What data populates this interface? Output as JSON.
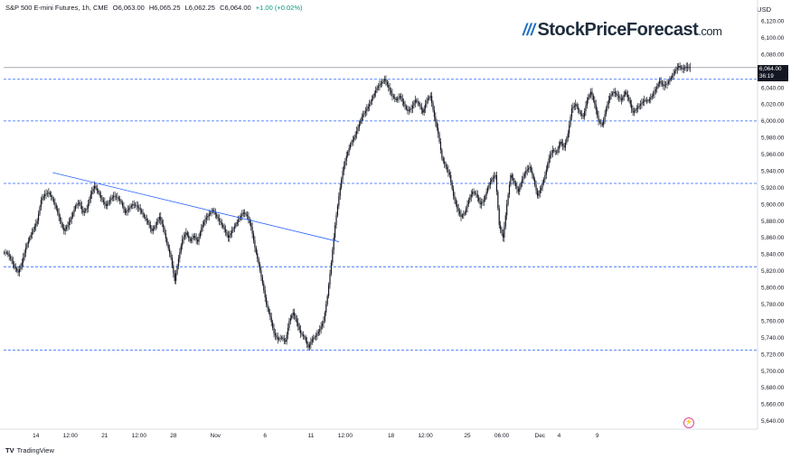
{
  "header": {
    "symbol": "S&P 500 E-mini Futures, 1h, CME",
    "open": "O6,063.00",
    "high": "H6,065.25",
    "low": "L6,062.25",
    "close": "C6,064.00",
    "change": "+1.00 (+0.02%)"
  },
  "currency": "USD",
  "logo": {
    "slashes": "///",
    "name": "StockPriceForecast",
    "domain": ".com"
  },
  "footer": {
    "brand": "TradingView",
    "mark": "TV"
  },
  "last_price": {
    "price": "6,064.00",
    "countdown": "36:19"
  },
  "icons": {
    "tradingview": "tradingview-logo-icon",
    "alert": "lightning-icon"
  },
  "colors": {
    "candle": "#131722",
    "level_line": "#2962ff",
    "trendline": "#2962ff",
    "price_line": "#787b86",
    "alert": "#e040a0"
  },
  "chart_data": {
    "type": "line",
    "title": "",
    "xlabel": "",
    "ylabel": "",
    "ylim": [
      5630,
      6130
    ],
    "y_ticks": [
      "6,120.00",
      "6,100.00",
      "6,080.00",
      "6,060.00",
      "6,040.00",
      "6,020.00",
      "6,000.00",
      "5,980.00",
      "5,960.00",
      "5,940.00",
      "5,920.00",
      "5,900.00",
      "5,880.00",
      "5,860.00",
      "5,840.00",
      "5,820.00",
      "5,800.00",
      "5,780.00",
      "5,760.00",
      "5,740.00",
      "5,720.00",
      "5,700.00",
      "5,680.00",
      "5,660.00",
      "5,640.00"
    ],
    "x_ticks": [
      "14",
      "12:00",
      "21",
      "12:00",
      "28",
      "Nov",
      "6",
      "11",
      "12:00",
      "18",
      "12:00",
      "25",
      "06:00",
      "Dec",
      "4",
      "9"
    ],
    "series": [
      {
        "values": [
          5842,
          5835,
          5825,
          5818,
          5830,
          5848,
          5860,
          5870,
          5880,
          5905,
          5912,
          5914,
          5906,
          5895,
          5880,
          5868,
          5875,
          5885,
          5898,
          5902,
          5890,
          5895,
          5912,
          5922,
          5914,
          5905,
          5898,
          5905,
          5910,
          5908,
          5902,
          5890,
          5895,
          5900,
          5898,
          5893,
          5885,
          5878,
          5868,
          5875,
          5885,
          5872,
          5852,
          5836,
          5808,
          5835,
          5858,
          5866,
          5856,
          5862,
          5855,
          5872,
          5882,
          5888,
          5893,
          5885,
          5878,
          5870,
          5860,
          5868,
          5876,
          5884,
          5890,
          5886,
          5873,
          5848,
          5828,
          5805,
          5780,
          5765,
          5745,
          5738,
          5740,
          5735,
          5760,
          5770,
          5758,
          5745,
          5740,
          5728,
          5738,
          5742,
          5750,
          5760,
          5790,
          5830,
          5875,
          5910,
          5940,
          5958,
          5972,
          5980,
          5992,
          6005,
          6012,
          6020,
          6030,
          6040,
          6045,
          6050,
          6040,
          6030,
          6025,
          6030,
          6020,
          6012,
          6015,
          6025,
          6020,
          6010,
          6025,
          6030,
          6005,
          5985,
          5955,
          5945,
          5935,
          5910,
          5895,
          5885,
          5890,
          5905,
          5915,
          5912,
          5900,
          5905,
          5920,
          5930,
          5935,
          5875,
          5860,
          5900,
          5935,
          5925,
          5915,
          5930,
          5940,
          5945,
          5930,
          5910,
          5920,
          5935,
          5955,
          5965,
          5962,
          5975,
          5968,
          5985,
          6015,
          6020,
          6010,
          6005,
          6025,
          6035,
          6020,
          6000,
          5995,
          6015,
          6030,
          6035,
          6030,
          6025,
          6035,
          6025,
          6010,
          6015,
          6020,
          6025,
          6024,
          6030,
          6038,
          6048,
          6042,
          6045,
          6052,
          6060,
          6066,
          6062,
          6065,
          6064
        ]
      }
    ],
    "horizontal_levels": [
      6050,
      6000,
      5925,
      5825,
      5725
    ],
    "last_price_line": 6064,
    "trendline": {
      "from": {
        "bar": 10,
        "price": 5938
      },
      "to": {
        "bar": 85,
        "price": 5855
      }
    },
    "grid": false,
    "legend": "none"
  }
}
